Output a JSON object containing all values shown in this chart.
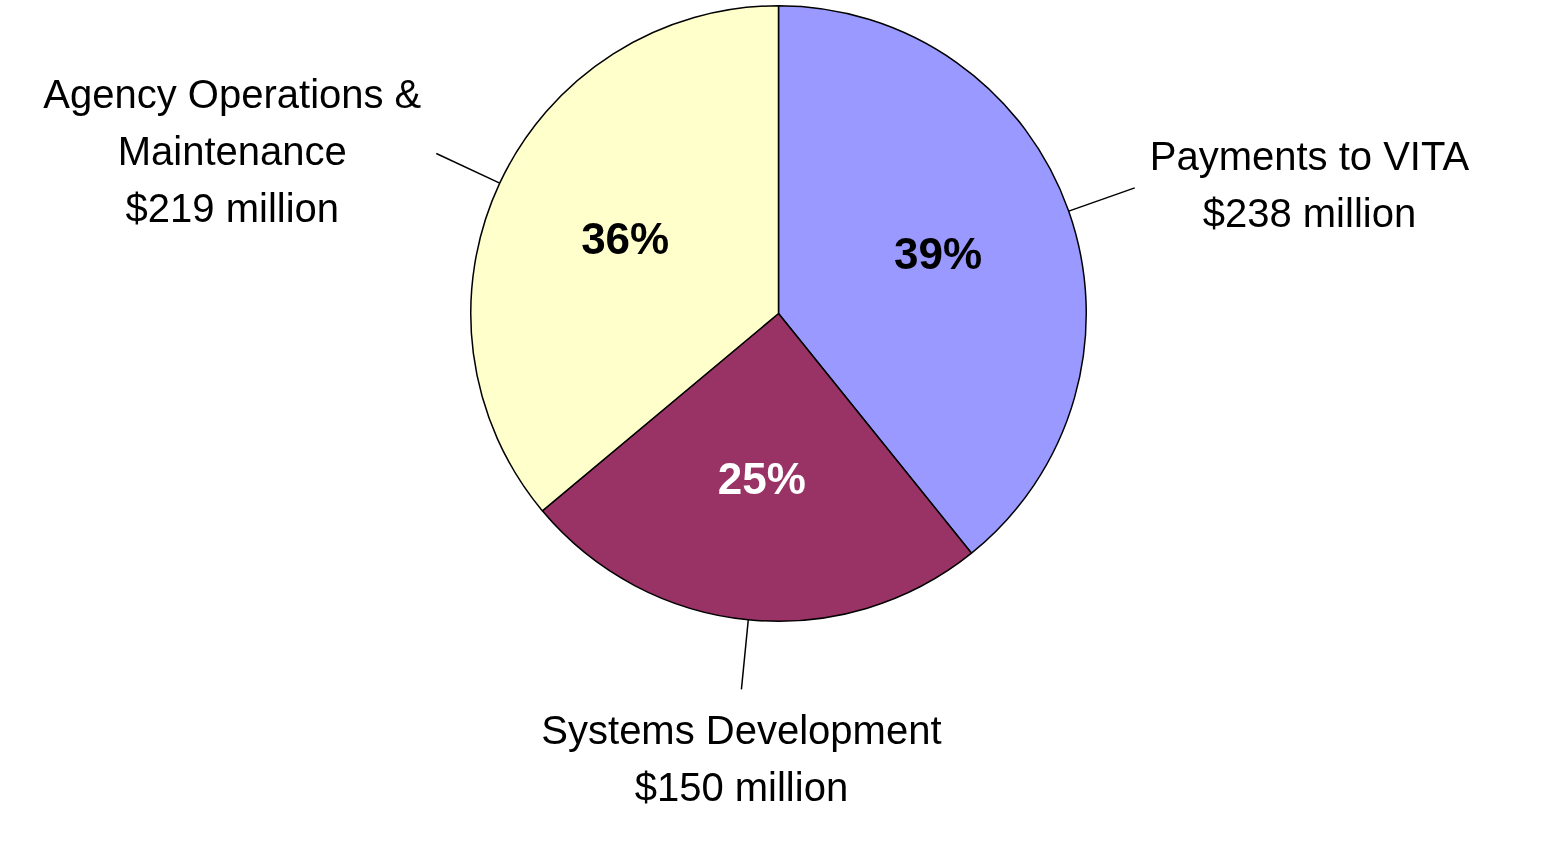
{
  "chart_data": {
    "type": "pie",
    "categories": [
      "Payments to VITA",
      "Systems Development",
      "Agency Operations & Maintenance"
    ],
    "values": [
      238,
      150,
      219
    ],
    "colors": [
      "#9999ff",
      "#993366",
      "#ffffcc"
    ],
    "value_labels": [
      "$238 million",
      "$150 million",
      "$219 million"
    ],
    "annotations": [
      "39%",
      "25%",
      "36%"
    ],
    "legend": false
  }
}
